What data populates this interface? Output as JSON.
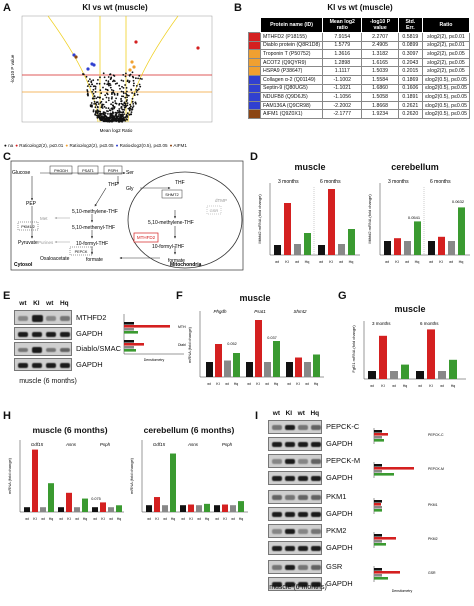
{
  "panelA": {
    "letter": "A",
    "title": "KI vs wt (muscle)",
    "xlabel": "Mean log2 Ratio",
    "ylabel": "-log10 P value",
    "legend": [
      {
        "label": "na",
        "color": "#111111"
      },
      {
        "label": "Ratio≥log2(2), p≤0.01",
        "color": "#d42020"
      },
      {
        "label": "Ratio≥log2(2), p≤0.05",
        "color": "#f0a030"
      },
      {
        "label": "Ratio≤log2(0.5), p≤0.05",
        "color": "#3040d0"
      },
      {
        "label": "AIFM1",
        "color": "#8b4513"
      }
    ]
  },
  "panelB": {
    "letter": "B",
    "title": "KI vs wt (muscle)",
    "headers": [
      "Protein name (ID)",
      "Mean log2 ratio",
      "-log10 P value",
      "Std. Err.",
      "Ratio"
    ],
    "rows": [
      {
        "color": "#d42020",
        "name": "MTHFD2 (P18155)",
        "ratio": "7.9154",
        "p": "2.2707",
        "se": "0.5819",
        "cls": "≥log2(2), p≤0.01"
      },
      {
        "color": "#d42020",
        "name": "Diablo protein (Q8R1D8)",
        "ratio": "1.5779",
        "p": "2.4905",
        "se": "0.0899",
        "cls": "≥log2(2), p≤0.01"
      },
      {
        "color": "#f0a030",
        "name": "Troponin T (P50752)",
        "ratio": "1.3616",
        "p": "1.3182",
        "se": "0.3097",
        "cls": "≥log2(2), p≤0.05"
      },
      {
        "color": "#f0a030",
        "name": "ACOT2 (Q9QYR9)",
        "ratio": "1.2898",
        "p": "1.6165",
        "se": "0.2043",
        "cls": "≥log2(2), p≤0.05"
      },
      {
        "color": "#f0a030",
        "name": "HSPA9 (P38647)",
        "ratio": "1.1117",
        "p": "1.5039",
        "se": "0.2015",
        "cls": "≥log2(2), p≤0.05"
      },
      {
        "color": "#3040d0",
        "name": "Collagen α-2 (Q01149)",
        "ratio": "-1.1002",
        "p": "1.5584",
        "se": "0.1869",
        "cls": "≤log2(0.5), p≤0.05"
      },
      {
        "color": "#3040d0",
        "name": "Septin-9 (Q80UG5)",
        "ratio": "-1.1021",
        "p": "1.6860",
        "se": "0.1606",
        "cls": "≤log2(0.5), p≤0.05"
      },
      {
        "color": "#3040d0",
        "name": "NDUFB8 (Q9D6J5)",
        "ratio": "-1.1056",
        "p": "1.5058",
        "se": "0.1891",
        "cls": "≤log2(0.5), p≤0.05"
      },
      {
        "color": "#3040d0",
        "name": "FAM136A (Q9CR98)",
        "ratio": "-2.2002",
        "p": "1.8668",
        "se": "0.2621",
        "cls": "≤log2(0.5), p≤0.05"
      },
      {
        "color": "#8b4513",
        "name": "AIFM1 (Q9Z0X1)",
        "ratio": "-2.1777",
        "p": "1.9234",
        "se": "0.2620",
        "cls": "≤log2(0.5), p≤0.05"
      }
    ]
  },
  "panelC": {
    "letter": "C",
    "labels": {
      "glucose": "Glucose",
      "pep": "PEP",
      "pyruvate": "Pyruvate",
      "oxaloacetate": "Oxaloacetate",
      "ser": "Ser",
      "gly": "Gly",
      "thf": "THF",
      "thf2": "THF",
      "mthf": "5,10-methylene-THF",
      "menthf": "5,10-methenyl-THF",
      "fthf": "10-formyl-THF",
      "mthf2": "5,10-methylene-THF",
      "fthf2": "10-formyl-THF",
      "formate": "formate",
      "formate2": "formate",
      "purines": "Purines",
      "met": "Met",
      "dtmp": "dTMP",
      "mthfd2": "MTHFD2",
      "shmt2": "SHMT2",
      "gsr": "GSR",
      "phgdh": "PHGDH",
      "psat1": "PSAT1",
      "psph": "PSPH",
      "pkm": "PKM1/2",
      "pepck": "PEPCK",
      "cytosol": "Cytosol",
      "mito": "Mitochondria"
    }
  },
  "panelD": {
    "letter": "D",
    "muscle": {
      "title": "muscle",
      "subs": [
        "3 months",
        "6 months"
      ],
      "ylabel": "Mthfd2 mRNA (fold change)",
      "pvals": []
    },
    "cerebellum": {
      "title": "cerebellum",
      "subs": [
        "3 months",
        "6 months"
      ],
      "ylabel": "Mthfd2 mRNA (fold change)",
      "pvals": [
        "0.0541",
        "0.0632"
      ]
    },
    "ticks": [
      "wt",
      "KI",
      "wt",
      "Hq"
    ]
  },
  "panelE": {
    "letter": "E",
    "lanes": [
      "wt",
      "KI",
      "wt",
      "Hq"
    ],
    "bands": [
      "MTHFD2",
      "GAPDH",
      "Diablo/SMAC",
      "GAPDH"
    ],
    "caption": "muscle (6 months)",
    "barlabels": [
      "MTHFD2",
      "Diablo"
    ],
    "xlabel": "Densitometry"
  },
  "panelF": {
    "letter": "F",
    "title": "muscle",
    "genes": [
      "Phgdh",
      "Psat1",
      "Shmt2"
    ],
    "ylabel": "mRNA (fold change)",
    "pvals": [
      "0.052",
      "0.037"
    ]
  },
  "panelG": {
    "letter": "G",
    "title": "muscle",
    "subs": [
      "3 months",
      "6 months"
    ],
    "ylabel": "Fgf21 mRNA (fold change)"
  },
  "panelH": {
    "letter": "H",
    "muscle": {
      "title": "muscle (6 months)",
      "genes": [
        "Gdf15",
        "Asns",
        "Psph"
      ],
      "pval": "0.075"
    },
    "cerebellum": {
      "title": "cerebellum (6 months)",
      "genes": [
        "Gdf15",
        "Asns",
        "Psph"
      ]
    },
    "ylabel": "mRNA (fold change)"
  },
  "panelI": {
    "letter": "I",
    "lanes": [
      "wt",
      "KI",
      "wt",
      "Hq"
    ],
    "bands": [
      "PEPCK-C",
      "GAPDH",
      "PEPCK-M",
      "GAPDH",
      "PKM1",
      "GAPDH",
      "PKM2",
      "GAPDH",
      "GSR",
      "GAPDH"
    ],
    "barlabels": [
      "PEPCK-C",
      "PEPCK-M",
      "PKM1",
      "PKM2",
      "GSR"
    ],
    "caption": "muscle (6 months)",
    "xlabel": "Densitometry"
  },
  "colors": {
    "wt": "#111111",
    "ki": "#d42020",
    "wt2": "#888888",
    "hq": "#3a9a30"
  }
}
